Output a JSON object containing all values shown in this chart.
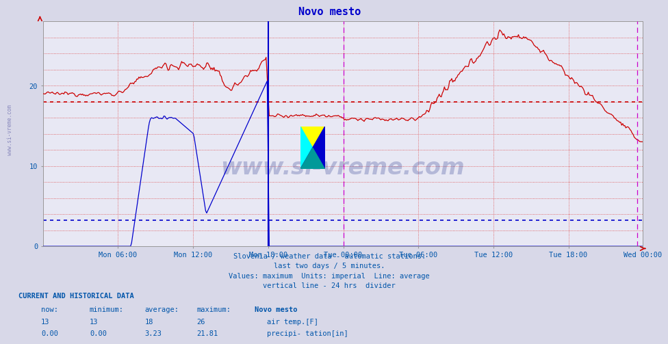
{
  "title": "Novo mesto",
  "title_color": "#0000cc",
  "background_color": "#d8d8e8",
  "plot_bg_color": "#e8e8f4",
  "xlabel_color": "#0055aa",
  "ylim": [
    0,
    28
  ],
  "xlim": [
    0,
    575
  ],
  "x_tick_positions": [
    72,
    144,
    216,
    288,
    360,
    432,
    504,
    575
  ],
  "x_tick_labels": [
    "Mon 06:00",
    "Mon 12:00",
    "Mon 18:00",
    "Tue 00:00",
    "Tue 06:00",
    "Tue 12:00",
    "Tue 18:00",
    "Wed 00:00"
  ],
  "air_temp_color": "#cc0000",
  "precip_color": "#0000cc",
  "avg_air_temp": 18,
  "avg_precip": 3.23,
  "vertical_line_24h": 216,
  "vertical_line_magenta1": 288,
  "vertical_line_magenta2": 570,
  "subtitle_lines": [
    "Slovenia / weather data - automatic stations.",
    "last two days / 5 minutes.",
    "Values: maximum  Units: imperial  Line: average",
    "vertical line - 24 hrs  divider"
  ],
  "footer_color": "#0055aa",
  "watermark": "www.si-vreme.com"
}
